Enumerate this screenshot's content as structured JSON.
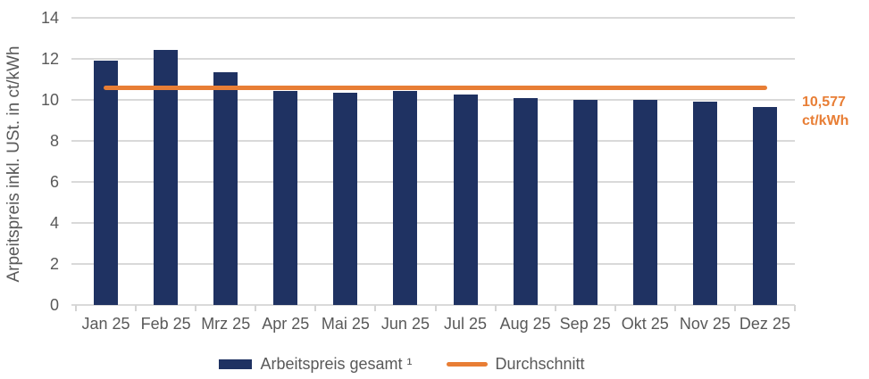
{
  "chart_data": {
    "type": "bar",
    "title": "",
    "categories": [
      "Jan 25",
      "Feb 25",
      "Mrz 25",
      "Apr 25",
      "Mai 25",
      "Jun 25",
      "Jul 25",
      "Aug 25",
      "Sep 25",
      "Okt 25",
      "Nov 25",
      "Dez 25"
    ],
    "series": [
      {
        "name": "Arbeitspreis gesamt ¹",
        "type": "bar",
        "color": "#1f3262",
        "values": [
          11.9,
          12.45,
          11.35,
          10.45,
          10.35,
          10.45,
          10.25,
          10.1,
          10.0,
          10.0,
          9.9,
          9.65
        ]
      },
      {
        "name": "Durchschnitt",
        "type": "line",
        "color": "#e87e35",
        "value": 10.577
      }
    ],
    "ylabel": "Arpeitspreis inkl. USt. in ct/kWh",
    "xlabel": "",
    "ylim": [
      0,
      14
    ],
    "yticks": [
      0,
      2,
      4,
      6,
      8,
      10,
      12,
      14
    ],
    "grid": "horizontal",
    "legend_position": "bottom",
    "average_annotation": {
      "value_text": "10,577",
      "unit_text": "ct/kWh"
    },
    "legend": [
      {
        "label": "Arbeitspreis gesamt ¹",
        "marker": "rect",
        "color": "#1f3262"
      },
      {
        "label": "Durchschnitt",
        "marker": "line",
        "color": "#e87e35"
      }
    ],
    "colors": {
      "grid": "#d9d9d9",
      "axis_text": "#595959"
    }
  }
}
